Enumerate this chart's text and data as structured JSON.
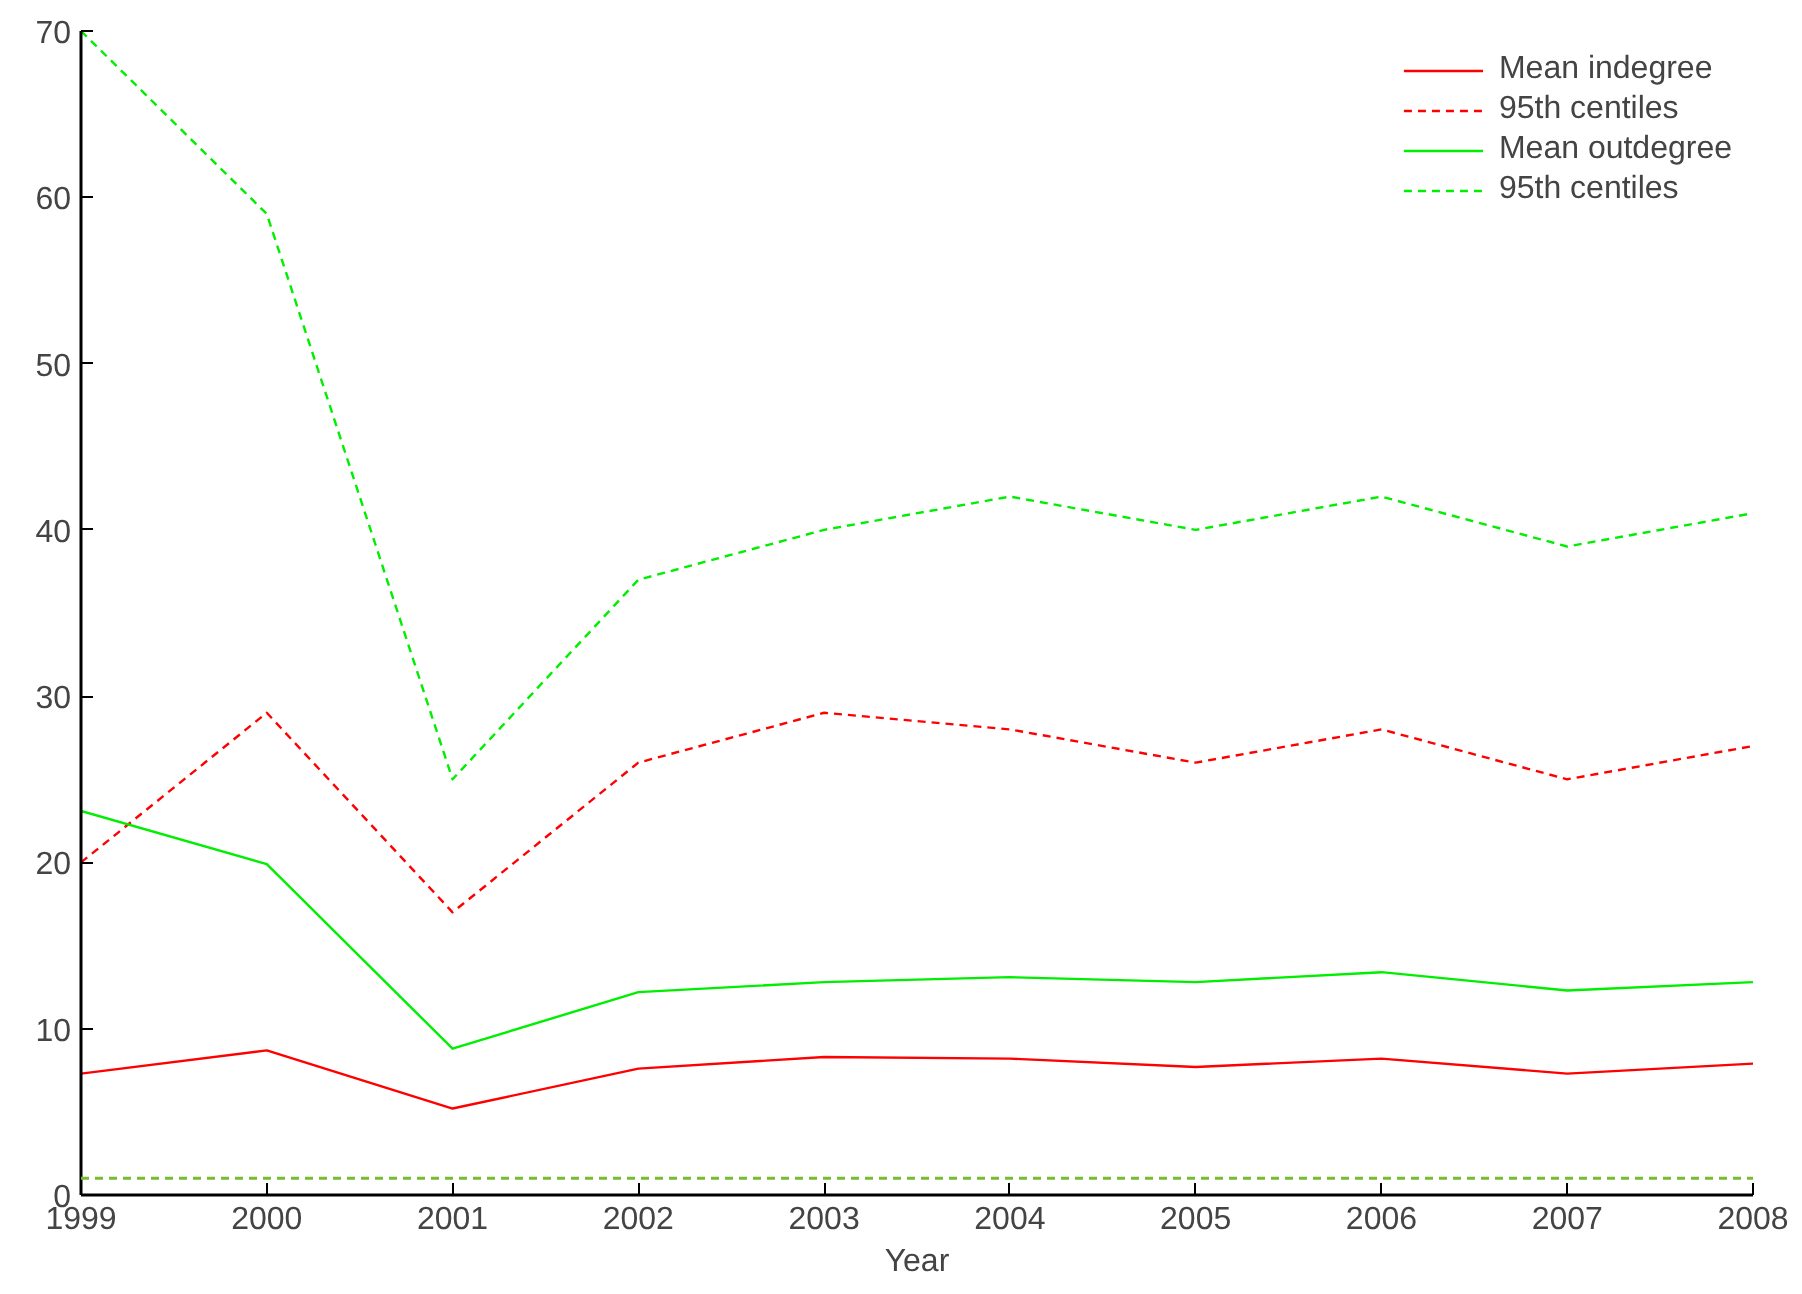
{
  "chart_data": {
    "type": "line",
    "xlabel": "Year",
    "x": [
      1999,
      2000,
      2001,
      2002,
      2003,
      2004,
      2005,
      2006,
      2007,
      2008
    ],
    "xlim": [
      1999,
      2008
    ],
    "xticks": [
      1999,
      2000,
      2001,
      2002,
      2003,
      2004,
      2005,
      2006,
      2007,
      2008
    ],
    "ylim": [
      0,
      70
    ],
    "yticks": [
      0,
      10,
      20,
      30,
      40,
      50,
      60,
      70
    ],
    "grid": false,
    "legend": "top right",
    "marker": "none",
    "series": [
      {
        "name": "Mean indegree",
        "color": "#ff0000",
        "line_style": "solid",
        "values": [
          7.3,
          8.7,
          5.2,
          7.6,
          8.3,
          8.2,
          7.7,
          8.2,
          7.3,
          7.9
        ]
      },
      {
        "name": "95th centiles",
        "color": "#ff0000",
        "line_style": "dashed",
        "values": [
          20,
          29,
          17,
          26,
          29,
          28,
          26,
          28,
          25,
          27
        ]
      },
      {
        "name": "Mean outdegree",
        "color": "#00ee00",
        "line_style": "solid",
        "values": [
          23.1,
          19.9,
          8.8,
          12.2,
          12.8,
          13.1,
          12.8,
          13.4,
          12.3,
          12.8
        ]
      },
      {
        "name": "95th centiles",
        "color": "#00ee00",
        "line_style": "dashed",
        "values": [
          70,
          59,
          25,
          37,
          40,
          42,
          40,
          42,
          39,
          41
        ]
      }
    ],
    "ref_lines": [
      {
        "axis": "y",
        "value": 1,
        "color": "#77bb33",
        "line_style": "dashed"
      }
    ]
  }
}
